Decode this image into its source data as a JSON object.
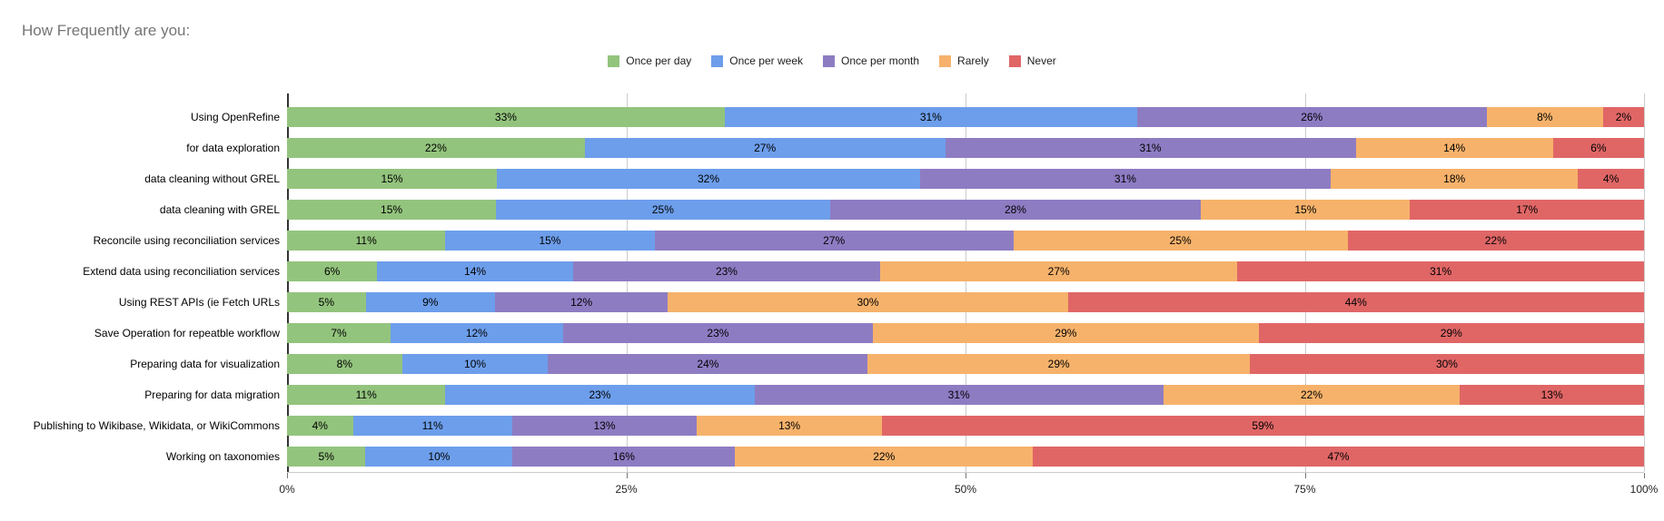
{
  "page": {
    "background": "#ffffff"
  },
  "chart_data": {
    "type": "bar",
    "stacked": true,
    "orientation": "horizontal",
    "title": "How Frequently are you:",
    "title_color": "#757575",
    "categories": [
      "Using OpenRefine",
      "for data exploration",
      "data cleaning without GREL",
      "data cleaning with GREL",
      "Reconcile using reconciliation services",
      "Extend data using reconciliation services",
      "Using REST APIs (ie Fetch URLs",
      "Save Operation for repeatble workflow",
      "Preparing data for visualization",
      "Preparing for data migration",
      "Publishing to Wikibase, Wikidata, or WikiCommons",
      "Working on taxonomies"
    ],
    "series": [
      {
        "name": "Once per day",
        "color": "#93c47d",
        "values": [
          33,
          22,
          15,
          15,
          11,
          6,
          5,
          7,
          8,
          11,
          4,
          5
        ]
      },
      {
        "name": "Once per week",
        "color": "#6d9eeb",
        "values": [
          31,
          27,
          32,
          25,
          15,
          14,
          9,
          12,
          10,
          23,
          11,
          10
        ]
      },
      {
        "name": "Once per month",
        "color": "#8e7cc3",
        "values": [
          26,
          31,
          31,
          28,
          27,
          23,
          12,
          23,
          24,
          31,
          13,
          16
        ]
      },
      {
        "name": "Rarely",
        "color": "#f6b26b",
        "values": [
          8,
          14,
          18,
          15,
          25,
          27,
          30,
          29,
          29,
          22,
          13,
          22
        ]
      },
      {
        "name": "Never",
        "color": "#e06666",
        "values": [
          2,
          6,
          4,
          17,
          22,
          31,
          44,
          29,
          30,
          13,
          59,
          47
        ]
      }
    ],
    "x_ticks": [
      "0%",
      "25%",
      "50%",
      "75%",
      "100%"
    ],
    "xlim": [
      0,
      100
    ],
    "value_suffix": "%",
    "legend_position": "top",
    "grid": true,
    "grid_color": "#cccccc",
    "axis_color": "#333333"
  }
}
